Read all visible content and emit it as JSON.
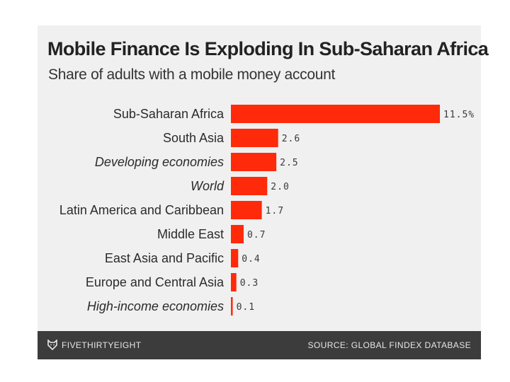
{
  "header": {
    "title": "Mobile Finance Is Exploding In Sub-Saharan Africa",
    "subtitle": "Share of adults with a mobile money account"
  },
  "footer": {
    "brand": "FIVETHIRTYEIGHT",
    "source": "SOURCE: GLOBAL FINDEX DATABASE",
    "logo_icon": "fox-icon"
  },
  "colors": {
    "bar": "#ff2a0a",
    "background": "#f0f0f0",
    "footer": "#3c3c3c"
  },
  "chart_data": {
    "type": "bar",
    "orientation": "horizontal",
    "title": "Mobile Finance Is Exploding In Sub-Saharan Africa",
    "subtitle": "Share of adults with a mobile money account",
    "categories": [
      "Sub-Saharan Africa",
      "South Asia",
      "Developing economies",
      "World",
      "Latin America and Caribbean",
      "Middle East",
      "East Asia and Pacific",
      "Europe and Central Asia",
      "High-income economies"
    ],
    "italic_categories": [
      "Developing economies",
      "World",
      "High-income economies"
    ],
    "values": [
      11.5,
      2.6,
      2.5,
      2.0,
      1.7,
      0.7,
      0.4,
      0.3,
      0.1
    ],
    "value_labels": [
      "11.5%",
      "2.6",
      "2.5",
      "2.0",
      "1.7",
      "0.7",
      "0.4",
      "0.3",
      "0.1"
    ],
    "xlim": [
      0,
      11.5
    ],
    "grid": false,
    "legend": "none"
  }
}
